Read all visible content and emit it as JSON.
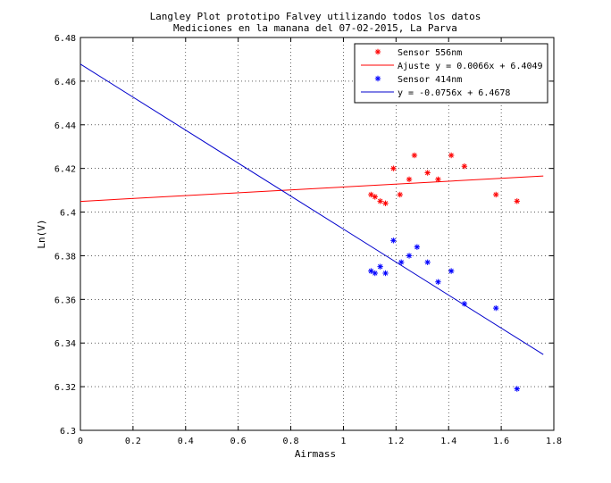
{
  "chart_data": {
    "type": "scatter",
    "title": "Langley Plot prototipo Falvey utilizando todos los datos",
    "subtitle": "Mediciones en la manana del 07-02-2015, La Parva",
    "xlabel": "Airmass",
    "ylabel": "Ln(V)",
    "xlim": [
      0,
      1.8
    ],
    "ylim": [
      6.3,
      6.48
    ],
    "xticks": [
      "0",
      "0.2",
      "0.4",
      "0.6",
      "0.8",
      "1",
      "1.2",
      "1.4",
      "1.6",
      "1.8"
    ],
    "yticks": [
      "6.3",
      "6.32",
      "6.34",
      "6.36",
      "6.38",
      "6.4",
      "6.42",
      "6.44",
      "6.46",
      "6.48"
    ],
    "grid": true,
    "legend_position": "top-right",
    "series": [
      {
        "name": "Sensor 556nm",
        "color": "#ff0000",
        "marker": "*",
        "points": [
          [
            1.105,
            6.408
          ],
          [
            1.12,
            6.407
          ],
          [
            1.14,
            6.405
          ],
          [
            1.16,
            6.404
          ],
          [
            1.19,
            6.42
          ],
          [
            1.215,
            6.408
          ],
          [
            1.25,
            6.415
          ],
          [
            1.27,
            6.426
          ],
          [
            1.32,
            6.418
          ],
          [
            1.36,
            6.415
          ],
          [
            1.41,
            6.426
          ],
          [
            1.46,
            6.421
          ],
          [
            1.58,
            6.408
          ],
          [
            1.66,
            6.405
          ]
        ]
      },
      {
        "name": "Sensor 414nm",
        "color": "#0000ff",
        "marker": "*",
        "points": [
          [
            1.105,
            6.373
          ],
          [
            1.12,
            6.372
          ],
          [
            1.14,
            6.375
          ],
          [
            1.16,
            6.372
          ],
          [
            1.19,
            6.387
          ],
          [
            1.22,
            6.377
          ],
          [
            1.25,
            6.38
          ],
          [
            1.28,
            6.384
          ],
          [
            1.32,
            6.377
          ],
          [
            1.36,
            6.368
          ],
          [
            1.41,
            6.373
          ],
          [
            1.46,
            6.358
          ],
          [
            1.58,
            6.356
          ],
          [
            1.66,
            6.319
          ]
        ]
      }
    ],
    "fits": [
      {
        "name": "Ajuste y = 0.0066x + 6.4049",
        "color": "#ff0000",
        "slope": 0.0066,
        "intercept": 6.4049,
        "x_range": [
          0,
          1.76
        ]
      },
      {
        "name": "y = -0.0756x + 6.4678",
        "color": "#0000cc",
        "slope": -0.0756,
        "intercept": 6.4678,
        "x_range": [
          0,
          1.76
        ]
      }
    ]
  }
}
